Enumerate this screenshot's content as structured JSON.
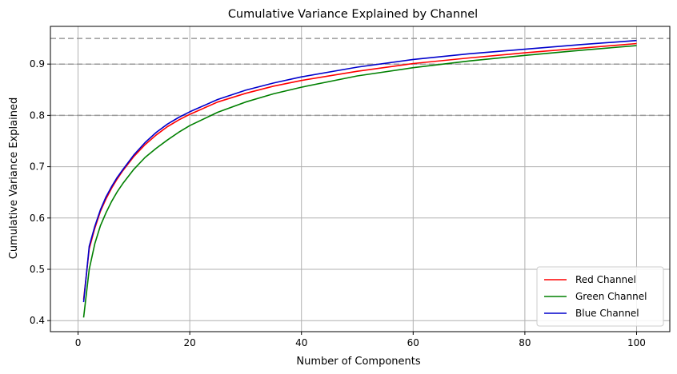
{
  "chart_data": {
    "type": "line",
    "title": "Cumulative Variance Explained by Channel",
    "xlabel": "Number of Components",
    "ylabel": "Cumulative Variance Explained",
    "xlim": [
      -4.95,
      105.95
    ],
    "ylim": [
      0.3785,
      0.9735
    ],
    "xticks": [
      0,
      20,
      40,
      60,
      80,
      100
    ],
    "yticks": [
      0.4,
      0.5,
      0.6,
      0.7,
      0.8,
      0.9
    ],
    "ytick_labels": [
      "0.4",
      "0.5",
      "0.6",
      "0.7",
      "0.8",
      "0.9"
    ],
    "grid": true,
    "legend_position": "lower-right",
    "reference_lines": [
      {
        "y": 0.95,
        "color": "#999999",
        "style": "dashed"
      },
      {
        "y": 0.9,
        "color": "#999999",
        "style": "dashed"
      },
      {
        "y": 0.8,
        "color": "#999999",
        "style": "dashed"
      }
    ],
    "series": [
      {
        "name": "Red Channel",
        "color": "#ff0000",
        "x": [
          1,
          2,
          3,
          4,
          5,
          6,
          7,
          8,
          10,
          12,
          14,
          16,
          18,
          20,
          25,
          30,
          35,
          40,
          50,
          60,
          70,
          80,
          90,
          100
        ],
        "y": [
          0.441,
          0.54,
          0.58,
          0.613,
          0.637,
          0.658,
          0.676,
          0.692,
          0.72,
          0.743,
          0.762,
          0.778,
          0.791,
          0.802,
          0.826,
          0.843,
          0.857,
          0.868,
          0.886,
          0.901,
          0.912,
          0.922,
          0.931,
          0.94
        ]
      },
      {
        "name": "Green Channel",
        "color": "#008000",
        "x": [
          1,
          2,
          3,
          4,
          5,
          6,
          7,
          8,
          10,
          12,
          14,
          16,
          18,
          20,
          25,
          30,
          35,
          40,
          50,
          60,
          70,
          80,
          90,
          100
        ],
        "y": [
          0.406,
          0.5,
          0.55,
          0.585,
          0.61,
          0.632,
          0.651,
          0.667,
          0.695,
          0.718,
          0.736,
          0.752,
          0.767,
          0.78,
          0.806,
          0.826,
          0.842,
          0.855,
          0.877,
          0.893,
          0.906,
          0.917,
          0.927,
          0.936
        ]
      },
      {
        "name": "Blue Channel",
        "color": "#0000cc",
        "x": [
          1,
          2,
          3,
          4,
          5,
          6,
          7,
          8,
          10,
          12,
          14,
          16,
          18,
          20,
          25,
          30,
          35,
          40,
          50,
          60,
          70,
          80,
          90,
          100
        ],
        "y": [
          0.436,
          0.545,
          0.584,
          0.616,
          0.641,
          0.661,
          0.679,
          0.694,
          0.723,
          0.747,
          0.767,
          0.783,
          0.796,
          0.807,
          0.831,
          0.849,
          0.863,
          0.875,
          0.894,
          0.909,
          0.92,
          0.929,
          0.938,
          0.946
        ]
      }
    ]
  }
}
